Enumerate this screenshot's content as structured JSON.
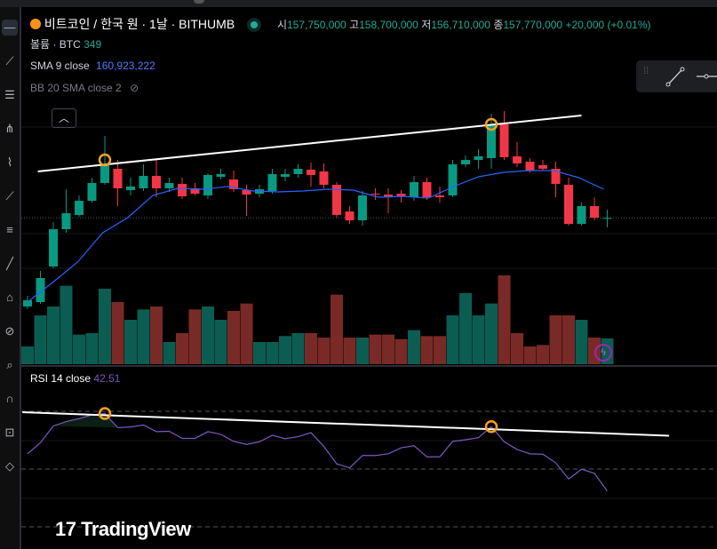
{
  "header": {
    "symbol_title": "비트코인 / 한국 원 · 1날 · BITHUMB",
    "open_label": "시",
    "open_value": "157,750,000",
    "high_label": "고",
    "high_value": "158,700,000",
    "low_label": "저",
    "low_value": "156,710,000",
    "close_label": "종",
    "close_value": "157,770,000",
    "change": "+20,000 (+0.01%)",
    "volume_label": "볼륨 · BTC",
    "volume_value": "349"
  },
  "indicators": {
    "sma_label": "SMA 9 close",
    "sma_value": "160,923,222",
    "bb_label": "BB 20 SMA close 2",
    "rsi_label": "RSI 14 close",
    "rsi_value": "42.51"
  },
  "branding": {
    "logo_text": "TradingView"
  },
  "colors": {
    "up": "#089981",
    "down": "#f23645",
    "vol_up": "#0b5d52",
    "vol_down": "#7a2a26",
    "sma": "#2962ff",
    "rsi": "#7e57c2",
    "marker": "#f7a21b"
  },
  "toolbar_icons": [
    "crosshair-icon",
    "trend-line-icon",
    "fib-icon",
    "pitchfork-icon",
    "brush-icon",
    "text-icon",
    "pattern-icon",
    "prediction-icon",
    "measure-icon",
    "zoom-icon",
    "magnet-icon",
    "lock-icon",
    "eye-icon",
    "trash-icon"
  ],
  "chart_data": {
    "type": "candlestick",
    "units": "KRW (millions)",
    "ohlc": [
      [
        147.8,
        149.0,
        147.5,
        148.5
      ],
      [
        148.3,
        151.8,
        148.1,
        151.0
      ],
      [
        152.3,
        157.3,
        152.1,
        156.5
      ],
      [
        156.5,
        161.0,
        156.1,
        158.3
      ],
      [
        158.1,
        160.3,
        157.9,
        159.7
      ],
      [
        159.7,
        162.3,
        159.5,
        161.7
      ],
      [
        161.7,
        167.0,
        161.5,
        163.7
      ],
      [
        163.3,
        164.3,
        159.1,
        161.1
      ],
      [
        160.9,
        162.3,
        160.3,
        161.3
      ],
      [
        161.1,
        163.8,
        160.8,
        162.5
      ],
      [
        162.5,
        164.3,
        160.1,
        161.1
      ],
      [
        161.1,
        162.3,
        160.7,
        161.7
      ],
      [
        161.6,
        162.3,
        159.9,
        160.2
      ],
      [
        161.1,
        161.7,
        160.3,
        160.5
      ],
      [
        160.3,
        162.8,
        159.9,
        162.6
      ],
      [
        162.4,
        163.3,
        162.1,
        162.7
      ],
      [
        162.1,
        163.1,
        160.7,
        161.0
      ],
      [
        160.9,
        161.5,
        158.0,
        160.4
      ],
      [
        160.5,
        161.5,
        160.1,
        161.0
      ],
      [
        160.8,
        163.3,
        160.5,
        162.7
      ],
      [
        162.4,
        163.3,
        161.9,
        162.7
      ],
      [
        162.7,
        163.8,
        162.3,
        163.3
      ],
      [
        163.2,
        164.0,
        161.3,
        162.6
      ],
      [
        163.0,
        163.9,
        161.1,
        161.5
      ],
      [
        161.5,
        161.8,
        157.8,
        158.1
      ],
      [
        158.5,
        159.1,
        157.1,
        157.5
      ],
      [
        157.5,
        160.8,
        156.9,
        160.3
      ],
      [
        160.5,
        161.1,
        159.8,
        160.4
      ],
      [
        160.4,
        161.1,
        158.3,
        160.1
      ],
      [
        160.5,
        160.9,
        159.5,
        160.2
      ],
      [
        160.1,
        162.5,
        159.7,
        161.8
      ],
      [
        161.8,
        162.3,
        159.8,
        160.1
      ],
      [
        160.3,
        161.3,
        159.5,
        160.1
      ],
      [
        160.3,
        164.3,
        160.1,
        163.8
      ],
      [
        163.8,
        164.8,
        163.5,
        164.3
      ],
      [
        164.3,
        165.5,
        163.3,
        164.7
      ],
      [
        164.5,
        169.5,
        163.3,
        168.3
      ],
      [
        168.3,
        169.8,
        164.3,
        164.6
      ],
      [
        164.7,
        166.3,
        163.5,
        163.9
      ],
      [
        164.1,
        164.5,
        162.9,
        163.1
      ],
      [
        163.7,
        164.3,
        163.1,
        163.3
      ],
      [
        163.3,
        164.1,
        160.1,
        161.6
      ],
      [
        161.5,
        162.3,
        156.9,
        157.1
      ],
      [
        157.1,
        159.5,
        156.9,
        159.1
      ],
      [
        159.1,
        160.1,
        157.5,
        157.8
      ],
      [
        157.75,
        158.7,
        156.71,
        157.77
      ]
    ],
    "volume": [
      240,
      660,
      780,
      1060,
      400,
      420,
      1020,
      840,
      600,
      740,
      780,
      300,
      420,
      740,
      780,
      600,
      720,
      820,
      300,
      300,
      380,
      420,
      420,
      360,
      940,
      360,
      360,
      400,
      400,
      340,
      460,
      380,
      380,
      660,
      960,
      660,
      820,
      1200,
      420,
      240,
      260,
      660,
      660,
      600,
      360,
      349
    ],
    "sma9": [
      148.3,
      150.5,
      152.8,
      156.1,
      157.8,
      160.3,
      161.1,
      161.0,
      161.3,
      160.8,
      160.7,
      160.8,
      161.0,
      160.9,
      160.1,
      160.2,
      160.0,
      161.3,
      162.4,
      162.9,
      163.1,
      163.1,
      162.3,
      161.0
    ],
    "rsi": [
      53.6,
      56.9,
      61.9,
      63.2,
      64.1,
      65.2,
      65.6,
      61.4,
      61.6,
      62.2,
      60.2,
      60.3,
      58.2,
      58.2,
      60.2,
      59.4,
      57.3,
      56.4,
      57.2,
      59.1,
      58.1,
      58.7,
      59.9,
      55.8,
      50.6,
      49.4,
      53.1,
      53.1,
      53.6,
      55.4,
      56.0,
      52.7,
      52.7,
      57.3,
      57.8,
      58.4,
      61.7,
      57.2,
      54.9,
      53.6,
      53.5,
      50.9,
      46.1,
      49.0,
      47.8,
      42.51
    ],
    "rsi_ylim": [
      30,
      75
    ],
    "price_ylim": [
      145,
      172
    ],
    "current_price": 157.77,
    "trendlines": [
      {
        "pane": "price",
        "from_index": 0.8,
        "from_value": 163.0,
        "to_index": 43,
        "to_value": 169.3
      },
      {
        "pane": "rsi",
        "from_index": -0.4,
        "from_value": 66.0,
        "to_index": 49.8,
        "to_value": 59.0
      }
    ],
    "markers": [
      {
        "pane": "price",
        "index": 6,
        "value": 164.3
      },
      {
        "pane": "price",
        "index": 36,
        "value": 168.3
      },
      {
        "pane": "rsi",
        "index": 6,
        "value": 65.6
      },
      {
        "pane": "rsi",
        "index": 36,
        "value": 61.7
      }
    ]
  }
}
